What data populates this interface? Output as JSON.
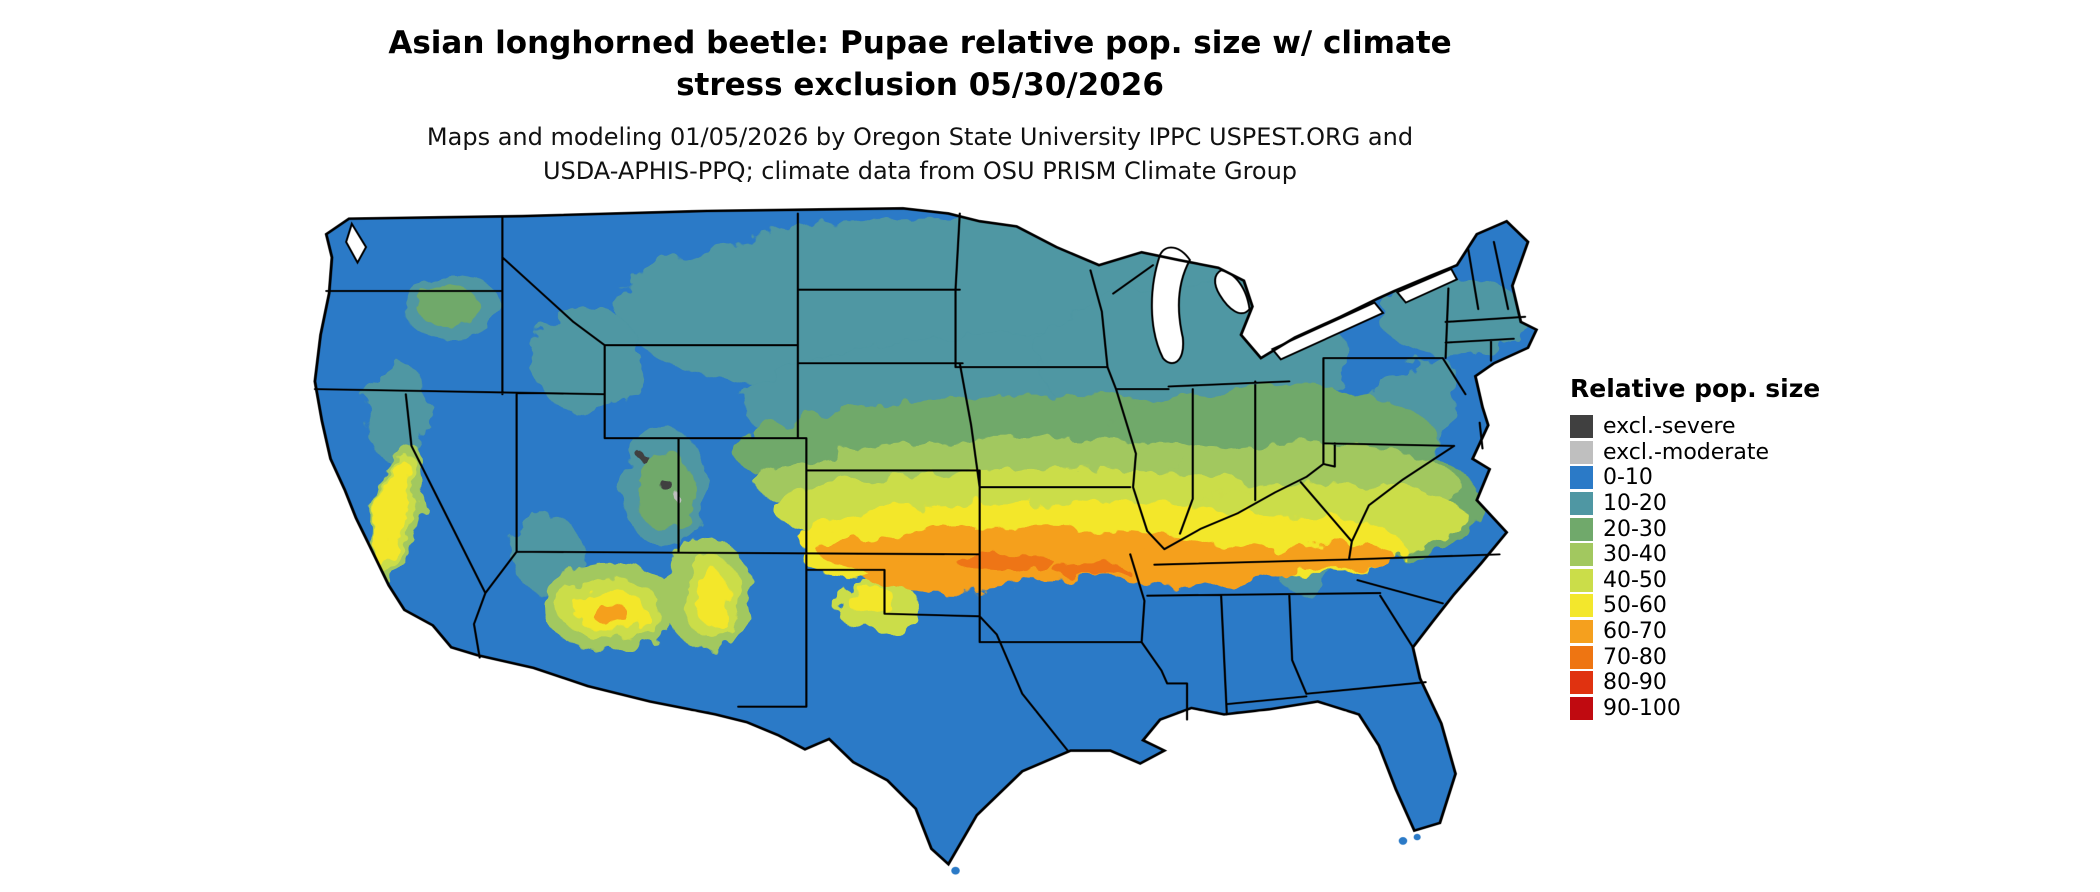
{
  "figure": {
    "title_line1": "Asian longhorned beetle: Pupae relative pop. size w/ climate",
    "title_line2": "stress exclusion 05/30/2026",
    "subtitle_line1": "Maps and modeling 01/05/2026 by Oregon State University IPPC USPEST.ORG and",
    "subtitle_line2": "USDA-APHIS-PPQ; climate data from OSU PRISM Climate Group"
  },
  "legend": {
    "title": "Relative pop. size",
    "items": [
      {
        "label": "excl.-severe",
        "color": "#404040"
      },
      {
        "label": "excl.-moderate",
        "color": "#bfbfbf"
      },
      {
        "label": "0-10",
        "color": "#2b7ac7"
      },
      {
        "label": "10-20",
        "color": "#4f97a3"
      },
      {
        "label": "20-30",
        "color": "#70a96b"
      },
      {
        "label": "30-40",
        "color": "#a2c85f"
      },
      {
        "label": "40-50",
        "color": "#cbdd49"
      },
      {
        "label": "50-60",
        "color": "#f3e72c"
      },
      {
        "label": "60-70",
        "color": "#f5a01e"
      },
      {
        "label": "70-80",
        "color": "#ee7512"
      },
      {
        "label": "80-90",
        "color": "#e03210"
      },
      {
        "label": "90-100",
        "color": "#c00a10"
      }
    ]
  }
}
